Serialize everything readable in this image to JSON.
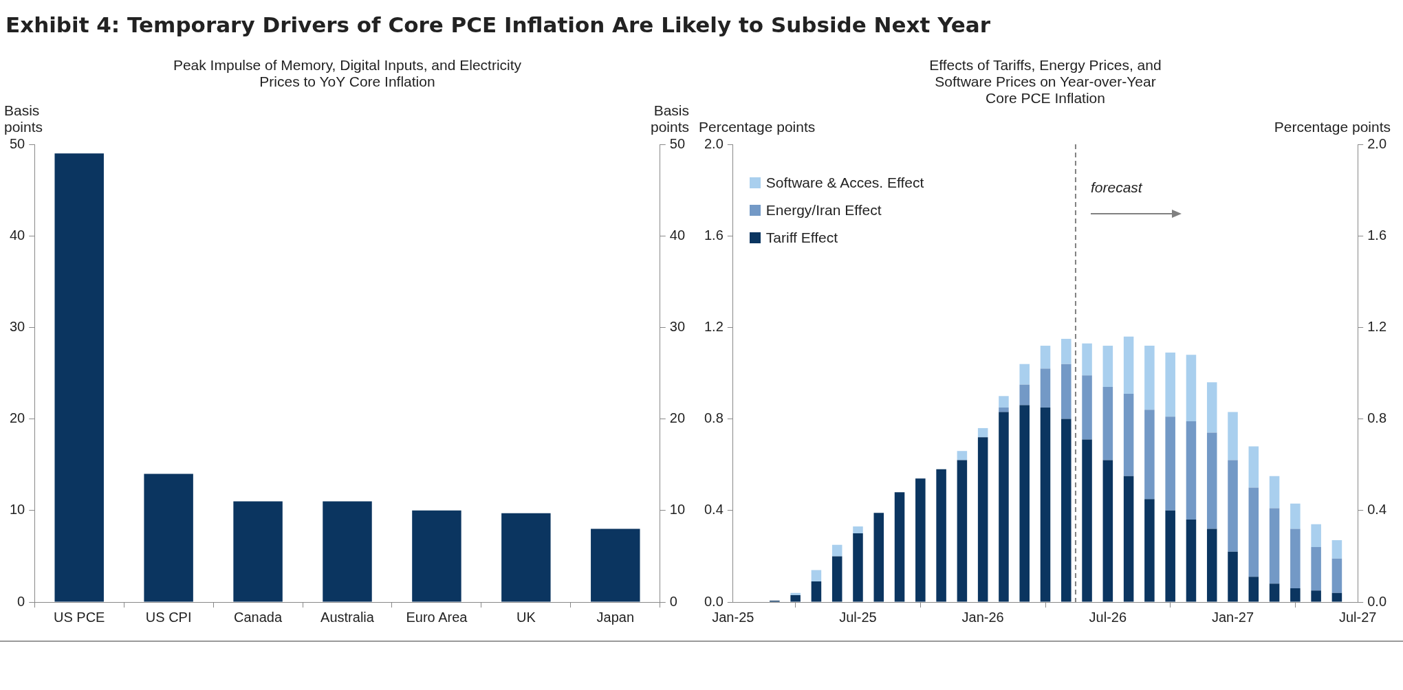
{
  "chart_data": [
    {
      "type": "bar",
      "title": "Exhibit 4: Temporary Drivers of Core PCE Inflation Are Likely to Subside Next Year",
      "subtitle": "Peak Impulse of Memory, Digital Inputs, and Electricity Prices to YoY Core Inflation",
      "ylabel": "Basis points",
      "y2label": "Basis points",
      "categories": [
        "US PCE",
        "US CPI",
        "Canada",
        "Australia",
        "Euro Area",
        "UK",
        "Japan"
      ],
      "values": [
        49,
        14,
        11,
        11,
        10,
        9.7,
        8
      ],
      "color": "#0b3560",
      "ylim": [
        0,
        50
      ],
      "yticks": [
        0,
        10,
        20,
        30,
        40,
        50
      ],
      "y2lim": [
        0,
        50
      ],
      "y2ticks": [
        0,
        10,
        20,
        30,
        40,
        50
      ]
    },
    {
      "type": "bar",
      "title": "Effects of Tariffs, Energy Prices, and Software Prices on Year-over-Year Core PCE Inflation",
      "ylabel": "Percentage points",
      "y2label": "Percentage points",
      "stacked": true,
      "legend": "top left",
      "x": [
        "2025-03",
        "2025-04",
        "2025-05",
        "2025-06",
        "2025-07",
        "2025-08",
        "2025-09",
        "2025-10",
        "2025-11",
        "2025-12",
        "2026-01",
        "2026-02",
        "2026-03",
        "2026-04",
        "2026-05",
        "2026-06",
        "2026-07",
        "2026-08",
        "2026-09",
        "2026-10",
        "2026-11",
        "2026-12",
        "2027-01",
        "2027-02",
        "2027-03",
        "2027-04",
        "2027-05",
        "2027-06"
      ],
      "series": [
        {
          "name": "Tariff Effect",
          "color": "#0b3560",
          "values": [
            0.006,
            0.03,
            0.09,
            0.2,
            0.3,
            0.39,
            0.48,
            0.54,
            0.58,
            0.62,
            0.72,
            0.83,
            0.86,
            0.85,
            0.8,
            0.71,
            0.62,
            0.55,
            0.45,
            0.4,
            0.36,
            0.32,
            0.22,
            0.11,
            0.08,
            0.06,
            0.05,
            0.04
          ]
        },
        {
          "name": "Energy/Iran Effect",
          "color": "#7399c6",
          "values": [
            null,
            null,
            null,
            null,
            null,
            null,
            null,
            null,
            null,
            null,
            null,
            0.02,
            0.09,
            0.17,
            0.24,
            0.28,
            0.32,
            0.36,
            0.39,
            0.41,
            0.43,
            0.42,
            0.4,
            0.39,
            0.33,
            0.26,
            0.19,
            0.15
          ]
        },
        {
          "name": "Software & Acces. Effect",
          "color": "#a9cfee",
          "values": [
            null,
            0.01,
            0.05,
            0.05,
            0.03,
            null,
            null,
            null,
            null,
            0.04,
            0.04,
            0.05,
            0.09,
            0.1,
            0.11,
            0.14,
            0.18,
            0.25,
            0.28,
            0.28,
            0.29,
            0.22,
            0.21,
            0.18,
            0.14,
            0.11,
            0.1,
            0.08
          ]
        }
      ],
      "xlim": [
        "2025-01",
        "2027-07"
      ],
      "xticks": [
        {
          "value": "2025-01",
          "label": "Jan-25"
        },
        {
          "value": "2025-07",
          "label": "Jul-25"
        },
        {
          "value": "2026-01",
          "label": "Jan-26"
        },
        {
          "value": "2026-07",
          "label": "Jul-26"
        },
        {
          "value": "2027-01",
          "label": "Jan-27"
        },
        {
          "value": "2027-07",
          "label": "Jul-27"
        }
      ],
      "ylim": [
        0,
        2
      ],
      "yticks": [
        {
          "value": 0,
          "label": "0.0"
        },
        0.4,
        0.8,
        1.2,
        1.6,
        {
          "value": 2,
          "label": "2.0"
        }
      ],
      "y2lim": [
        0,
        2
      ],
      "y2ticks": [
        {
          "value": 0,
          "label": "0.0"
        },
        0.4,
        0.8,
        1.2,
        1.6,
        {
          "value": 2,
          "label": "2.0"
        }
      ],
      "ref_lines": [
        {
          "axis": "x",
          "value": "2026-05-15",
          "label": "forecast",
          "color": "#808080",
          "line_style": "dashed"
        }
      ]
    }
  ]
}
